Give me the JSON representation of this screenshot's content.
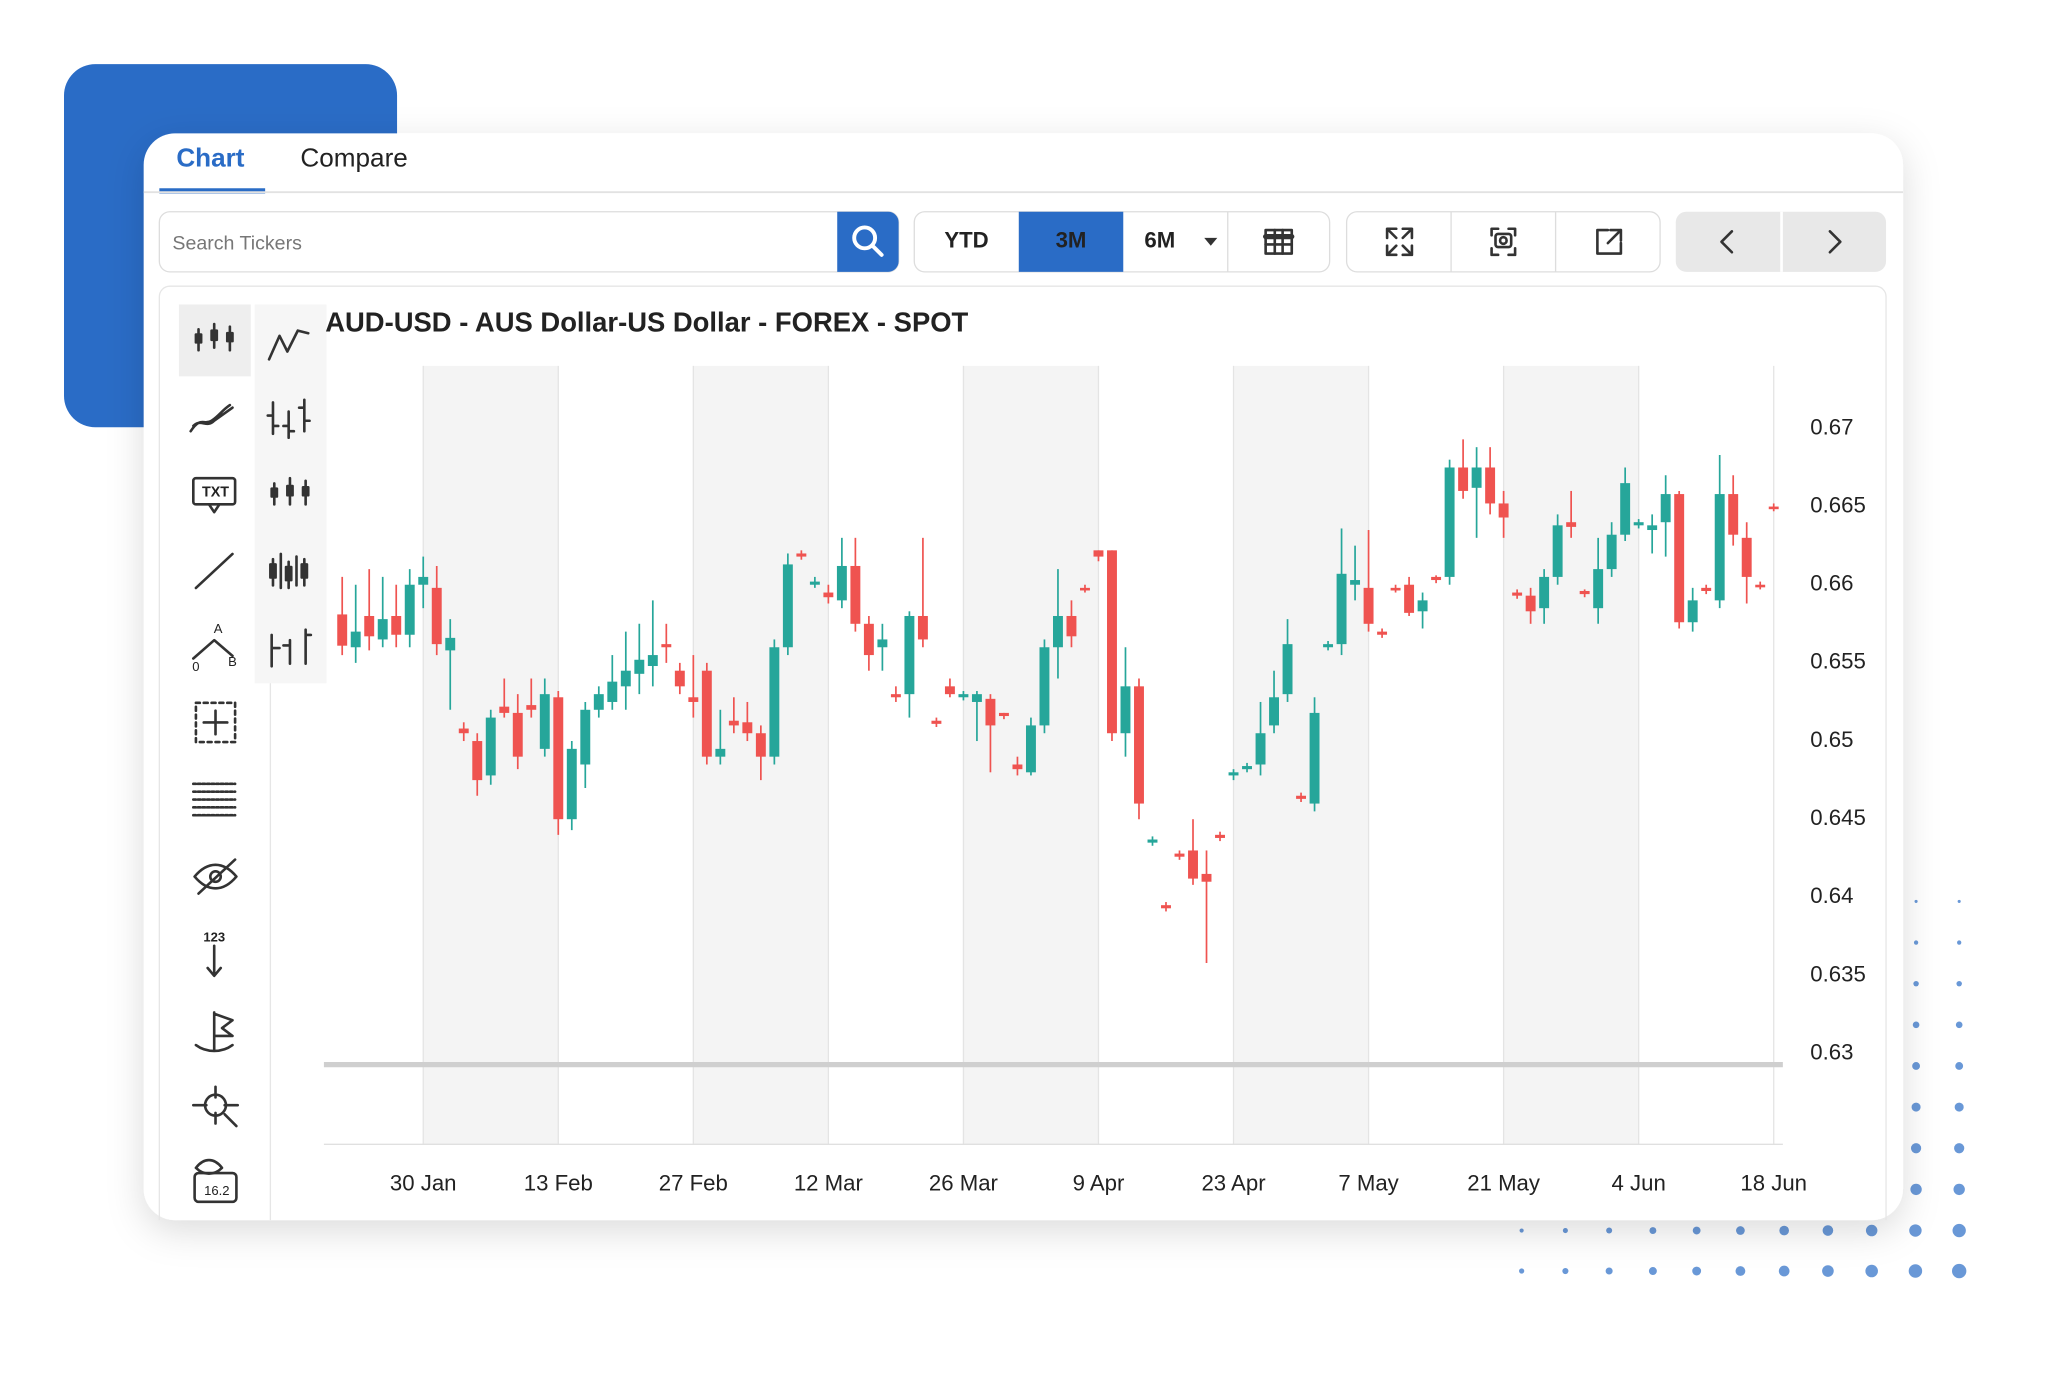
{
  "tabs": [
    "Chart",
    "Compare"
  ],
  "search_placeholder": "Search Tickers",
  "range_buttons": [
    "YTD",
    "3M",
    "6M"
  ],
  "active_range_index": 1,
  "tool_labels": [
    "TXT",
    "A",
    "0",
    "B",
    "123",
    "16.2"
  ],
  "chart_data": {
    "type": "candlestick",
    "title": "AUD-USD - AUS Dollar-US Dollar - FOREX - SPOT",
    "categories": [
      null,
      null,
      null,
      null,
      null,
      null,
      "30 Jan",
      null,
      null,
      null,
      null,
      null,
      null,
      null,
      null,
      null,
      "13 Feb",
      null,
      null,
      null,
      null,
      null,
      null,
      null,
      null,
      null,
      "27 Feb",
      null,
      null,
      null,
      null,
      null,
      null,
      null,
      null,
      null,
      "12 Mar",
      null,
      null,
      null,
      null,
      null,
      null,
      null,
      null,
      null,
      "26 Mar",
      null,
      null,
      null,
      null,
      null,
      null,
      null,
      null,
      null,
      "9 Apr",
      null,
      null,
      null,
      null,
      null,
      null,
      null,
      null,
      null,
      "23 Apr",
      null,
      null,
      null,
      null,
      null,
      null,
      null,
      null,
      null,
      "7 May",
      null,
      null,
      null,
      null,
      null,
      null,
      null,
      null,
      null,
      "21 May",
      null,
      null,
      null,
      null,
      null,
      null,
      null,
      null,
      null,
      "4 Jun",
      null,
      null,
      null,
      null,
      null,
      null,
      null,
      null,
      null,
      "18 Jun"
    ],
    "open": [
      0.6581,
      0.656,
      0.658,
      0.6565,
      0.658,
      0.6568,
      0.66,
      0.6598,
      0.6558,
      0.6508,
      0.65,
      0.6478,
      0.6522,
      0.6518,
      0.6523,
      0.6495,
      0.6528,
      0.645,
      0.6485,
      0.652,
      0.6525,
      0.6535,
      0.6543,
      0.6548,
      0.6562,
      0.6545,
      0.6528,
      0.6545,
      0.649,
      0.6513,
      0.6512,
      0.6505,
      0.649,
      0.656,
      0.662,
      0.66,
      0.6595,
      0.659,
      0.6612,
      0.6575,
      0.656,
      0.653,
      0.653,
      0.658,
      0.6513,
      0.6535,
      0.6528,
      0.6525,
      0.6527,
      0.6518,
      0.6485,
      0.648,
      0.651,
      0.656,
      0.658,
      0.6598,
      0.6622,
      0.6622,
      0.6505,
      0.6535,
      0.6435,
      0.6395,
      0.6428,
      0.643,
      0.6415,
      0.644,
      0.6478,
      0.6482,
      0.6485,
      0.651,
      0.653,
      0.6465,
      0.646,
      0.656,
      0.6562,
      0.66,
      0.6598,
      0.657,
      0.6598,
      0.66,
      0.6583,
      0.6605,
      0.6605,
      0.6675,
      0.6662,
      0.6675,
      0.6652,
      0.6595,
      0.6593,
      0.6585,
      0.6605,
      0.664,
      0.6596,
      0.6585,
      0.661,
      0.6632,
      0.6638,
      0.6635,
      0.664,
      0.6658,
      0.6576,
      0.6598,
      0.659,
      0.6658,
      0.663,
      0.66,
      0.665
    ],
    "high": [
      0.6605,
      0.66,
      0.661,
      0.6605,
      0.66,
      0.661,
      0.6618,
      0.6612,
      0.6578,
      0.6512,
      0.6505,
      0.652,
      0.654,
      0.653,
      0.654,
      0.654,
      0.6532,
      0.65,
      0.6525,
      0.6535,
      0.6555,
      0.657,
      0.6575,
      0.659,
      0.6575,
      0.655,
      0.6555,
      0.655,
      0.652,
      0.6528,
      0.6525,
      0.651,
      0.6565,
      0.662,
      0.6622,
      0.6605,
      0.66,
      0.663,
      0.663,
      0.658,
      0.6575,
      0.6535,
      0.6583,
      0.663,
      0.6515,
      0.654,
      0.6532,
      0.6532,
      0.653,
      0.6518,
      0.649,
      0.6515,
      0.6565,
      0.661,
      0.659,
      0.66,
      0.6622,
      0.6622,
      0.656,
      0.654,
      0.6439,
      0.6397,
      0.643,
      0.645,
      0.643,
      0.6442,
      0.6482,
      0.6486,
      0.6525,
      0.6545,
      0.6578,
      0.6467,
      0.6528,
      0.6564,
      0.6636,
      0.6625,
      0.6635,
      0.6572,
      0.66,
      0.6605,
      0.6595,
      0.6606,
      0.668,
      0.6693,
      0.6688,
      0.6688,
      0.666,
      0.6597,
      0.6598,
      0.661,
      0.6645,
      0.666,
      0.6597,
      0.663,
      0.664,
      0.6675,
      0.6642,
      0.6645,
      0.667,
      0.666,
      0.6598,
      0.66,
      0.6683,
      0.667,
      0.664,
      0.6602,
      0.6652
    ],
    "low": [
      0.6555,
      0.655,
      0.6558,
      0.656,
      0.656,
      0.656,
      0.6585,
      0.6555,
      0.652,
      0.65,
      0.6465,
      0.6472,
      0.6515,
      0.6482,
      0.6515,
      0.649,
      0.644,
      0.6443,
      0.647,
      0.6515,
      0.652,
      0.652,
      0.653,
      0.6535,
      0.655,
      0.653,
      0.6515,
      0.6485,
      0.6485,
      0.6505,
      0.65,
      0.6475,
      0.6485,
      0.6555,
      0.6616,
      0.6598,
      0.6588,
      0.6585,
      0.657,
      0.6545,
      0.6545,
      0.6525,
      0.6515,
      0.656,
      0.6509,
      0.6528,
      0.6526,
      0.65,
      0.648,
      0.6514,
      0.6478,
      0.6478,
      0.6505,
      0.654,
      0.656,
      0.6595,
      0.6615,
      0.65,
      0.649,
      0.645,
      0.6433,
      0.6391,
      0.6424,
      0.6408,
      0.6358,
      0.6436,
      0.6475,
      0.648,
      0.6478,
      0.6505,
      0.6525,
      0.6461,
      0.6455,
      0.6558,
      0.6555,
      0.659,
      0.657,
      0.6566,
      0.6595,
      0.658,
      0.6572,
      0.6601,
      0.66,
      0.6655,
      0.663,
      0.6645,
      0.663,
      0.6591,
      0.6575,
      0.6575,
      0.66,
      0.663,
      0.6592,
      0.6575,
      0.6605,
      0.6628,
      0.6636,
      0.662,
      0.6618,
      0.6572,
      0.657,
      0.6594,
      0.6585,
      0.6625,
      0.6588,
      0.6597,
      0.6647
    ],
    "close": [
      0.6561,
      0.657,
      0.6567,
      0.6578,
      0.6568,
      0.66,
      0.6605,
      0.6562,
      0.6566,
      0.6505,
      0.6475,
      0.6515,
      0.6518,
      0.649,
      0.652,
      0.653,
      0.645,
      0.6495,
      0.652,
      0.653,
      0.6538,
      0.6545,
      0.6552,
      0.6555,
      0.656,
      0.6535,
      0.6525,
      0.649,
      0.6495,
      0.651,
      0.6505,
      0.649,
      0.656,
      0.6613,
      0.6618,
      0.6602,
      0.6592,
      0.6612,
      0.6575,
      0.6555,
      0.6565,
      0.6528,
      0.658,
      0.6565,
      0.6511,
      0.653,
      0.653,
      0.653,
      0.651,
      0.6516,
      0.6482,
      0.651,
      0.656,
      0.658,
      0.6567,
      0.6597,
      0.6618,
      0.6505,
      0.6535,
      0.646,
      0.6437,
      0.6393,
      0.6426,
      0.6412,
      0.641,
      0.6438,
      0.648,
      0.6484,
      0.6505,
      0.6528,
      0.6562,
      0.6463,
      0.6518,
      0.6562,
      0.6607,
      0.6603,
      0.6575,
      0.6568,
      0.6597,
      0.6582,
      0.659,
      0.6603,
      0.6675,
      0.666,
      0.6675,
      0.6652,
      0.6643,
      0.6593,
      0.6583,
      0.6605,
      0.6638,
      0.6637,
      0.6594,
      0.661,
      0.6632,
      0.6665,
      0.664,
      0.6638,
      0.6658,
      0.6576,
      0.659,
      0.6596,
      0.6658,
      0.6632,
      0.6605,
      0.6599,
      0.6649
    ],
    "up_color": "#26a69a",
    "down_color": "#ef5350",
    "ylim": [
      0.6242,
      0.674
    ],
    "yticks": [
      0.63,
      0.635,
      0.64,
      0.645,
      0.65,
      0.655,
      0.66,
      0.665,
      0.67
    ],
    "hline": 0.6293
  }
}
